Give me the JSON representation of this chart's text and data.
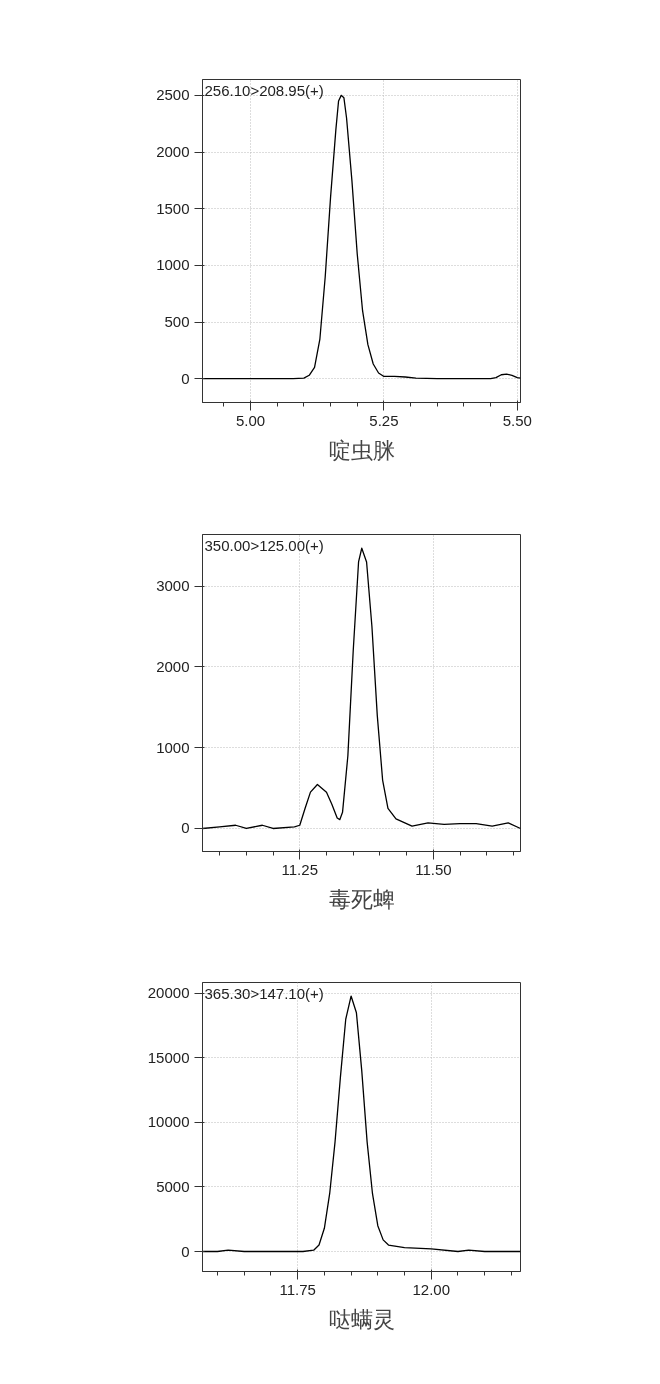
{
  "chart_data": [
    {
      "type": "line",
      "title": "啶虫脒",
      "annotations": [
        "256.10>208.95(+)"
      ],
      "grid": true,
      "xlim": [
        4.91,
        5.506
      ],
      "ylim": [
        -210,
        2640
      ],
      "xticks": [
        {
          "value": 4.95,
          "label": null
        },
        {
          "value": 5,
          "label": "5.00"
        },
        {
          "value": 5.05,
          "label": null
        },
        {
          "value": 5.1,
          "label": null
        },
        {
          "value": 5.15,
          "label": null
        },
        {
          "value": 5.2,
          "label": null
        },
        {
          "value": 5.25,
          "label": "5.25"
        },
        {
          "value": 5.3,
          "label": null
        },
        {
          "value": 5.35,
          "label": null
        },
        {
          "value": 5.4,
          "label": null
        },
        {
          "value": 5.45,
          "label": null
        },
        {
          "value": 5.5,
          "label": "5.50"
        }
      ],
      "yticks": [
        0,
        500,
        1000,
        1500,
        2000,
        2500
      ],
      "x": [
        4.91,
        5.0,
        5.08,
        5.1,
        5.11,
        5.12,
        5.13,
        5.14,
        5.15,
        5.16,
        5.165,
        5.17,
        5.175,
        5.18,
        5.19,
        5.2,
        5.21,
        5.22,
        5.23,
        5.24,
        5.25,
        5.27,
        5.29,
        5.31,
        5.35,
        5.4,
        5.45,
        5.46,
        5.47,
        5.48,
        5.49,
        5.5,
        5.506
      ],
      "series": [
        {
          "color": "#000000",
          "values": [
            0,
            0,
            0,
            5,
            30,
            100,
            350,
            900,
            1600,
            2200,
            2450,
            2500,
            2480,
            2300,
            1750,
            1100,
            600,
            300,
            130,
            50,
            20,
            20,
            15,
            5,
            0,
            0,
            0,
            10,
            35,
            40,
            30,
            10,
            5
          ]
        }
      ]
    },
    {
      "type": "line",
      "title": "毒死蜱",
      "annotations": [
        "350.00>125.00(+)"
      ],
      "grid": true,
      "xlim": [
        11.068,
        11.663
      ],
      "ylim": [
        -285,
        3640
      ],
      "xticks": [
        {
          "value": 11.1,
          "label": null
        },
        {
          "value": 11.15,
          "label": null
        },
        {
          "value": 11.2,
          "label": null
        },
        {
          "value": 11.25,
          "label": "11.25"
        },
        {
          "value": 11.3,
          "label": null
        },
        {
          "value": 11.35,
          "label": null
        },
        {
          "value": 11.4,
          "label": null
        },
        {
          "value": 11.45,
          "label": null
        },
        {
          "value": 11.5,
          "label": "11.50"
        },
        {
          "value": 11.55,
          "label": null
        },
        {
          "value": 11.6,
          "label": null
        },
        {
          "value": 11.65,
          "label": null
        }
      ],
      "yticks": [
        0,
        1000,
        2000,
        3000
      ],
      "x": [
        11.068,
        11.1,
        11.13,
        11.15,
        11.18,
        11.2,
        11.24,
        11.25,
        11.26,
        11.27,
        11.283,
        11.3,
        11.31,
        11.32,
        11.325,
        11.33,
        11.34,
        11.35,
        11.36,
        11.366,
        11.375,
        11.385,
        11.395,
        11.405,
        11.415,
        11.43,
        11.46,
        11.49,
        11.52,
        11.55,
        11.58,
        11.61,
        11.64,
        11.663
      ],
      "series": [
        {
          "color": "#000000",
          "values": [
            0,
            20,
            40,
            0,
            40,
            0,
            20,
            40,
            250,
            450,
            545,
            450,
            300,
            130,
            110,
            200,
            900,
            2200,
            3300,
            3470,
            3300,
            2500,
            1400,
            600,
            250,
            120,
            30,
            70,
            50,
            60,
            60,
            30,
            70,
            0
          ]
        }
      ]
    },
    {
      "type": "line",
      "title": "哒螨灵",
      "annotations": [
        "365.30>147.10(+)"
      ],
      "grid": true,
      "xlim": [
        11.572,
        12.167
      ],
      "ylim": [
        -1550,
        20850
      ],
      "xticks": [
        {
          "value": 11.6,
          "label": null
        },
        {
          "value": 11.65,
          "label": null
        },
        {
          "value": 11.7,
          "label": null
        },
        {
          "value": 11.75,
          "label": "11.75"
        },
        {
          "value": 11.8,
          "label": null
        },
        {
          "value": 11.85,
          "label": null
        },
        {
          "value": 11.9,
          "label": null
        },
        {
          "value": 11.95,
          "label": null
        },
        {
          "value": 12,
          "label": "12.00"
        },
        {
          "value": 12.05,
          "label": null
        },
        {
          "value": 12.1,
          "label": null
        },
        {
          "value": 12.15,
          "label": null
        }
      ],
      "yticks": [
        0,
        5000,
        10000,
        15000,
        20000
      ],
      "x": [
        11.572,
        11.6,
        11.62,
        11.65,
        11.7,
        11.76,
        11.78,
        11.79,
        11.8,
        11.81,
        11.82,
        11.83,
        11.84,
        11.85,
        11.86,
        11.87,
        11.88,
        11.89,
        11.9,
        11.91,
        11.92,
        11.95,
        12.0,
        12.05,
        12.07,
        12.1,
        12.167
      ],
      "series": [
        {
          "color": "#000000",
          "values": [
            0,
            0,
            100,
            0,
            0,
            0,
            100,
            500,
            1800,
            4500,
            8500,
            13500,
            18000,
            19800,
            18500,
            14000,
            8500,
            4500,
            2000,
            900,
            500,
            300,
            200,
            0,
            100,
            0,
            0
          ]
        }
      ]
    }
  ]
}
